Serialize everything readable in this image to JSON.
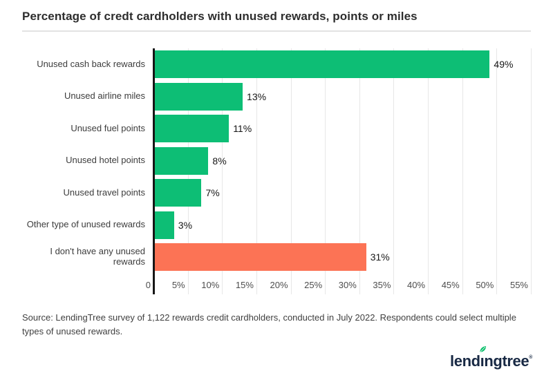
{
  "title": "Percentage of credt cardholders with unused rewards, points or miles",
  "source_note": "Source: LendingTree survey of 1,122 rewards credit cardholders, conducted in July 2022. Respondents could select multiple types of unused rewards.",
  "logo": {
    "name": "lendingtree",
    "prefix": "lend",
    "dotless_i": "ı",
    "suffix": "ngtree",
    "registered_mark": "®"
  },
  "colors": {
    "bar_green": "#0dbe75",
    "bar_orange": "#fc7355",
    "axis": "#161616",
    "gridline": "#e7e7e7",
    "divider": "#e2e2e2",
    "title_text": "#2d2d2d",
    "category_text": "#3c3c3c",
    "tick_text": "#4d4d4d",
    "logo_navy": "#182944",
    "leaf_green": "#0cc06c"
  },
  "chart_data": {
    "type": "bar",
    "orientation": "horizontal",
    "title": "Percentage of credt cardholders with unused rewards, points or miles",
    "categories": [
      "Unused cash back rewards",
      "Unused airline miles",
      "Unused fuel points",
      "Unused hotel points",
      "Unused travel points",
      "Other type of unused rewards",
      "I don't have any unused rewards"
    ],
    "values": [
      49,
      13,
      11,
      8,
      7,
      3,
      31
    ],
    "value_labels": [
      "49%",
      "13%",
      "11%",
      "8%",
      "7%",
      "3%",
      "31%"
    ],
    "bar_colors": [
      "#0dbe75",
      "#0dbe75",
      "#0dbe75",
      "#0dbe75",
      "#0dbe75",
      "#0dbe75",
      "#fc7355"
    ],
    "highlight_category": "I don't have any unused rewards",
    "x_ticks": [
      "0",
      "5%",
      "10%",
      "15%",
      "20%",
      "25%",
      "30%",
      "35%",
      "40%",
      "45%",
      "50%",
      "55%"
    ],
    "tick_values": [
      0,
      5,
      10,
      15,
      20,
      25,
      30,
      35,
      40,
      45,
      50,
      55
    ],
    "xlim": [
      0,
      55
    ],
    "xlabel": "",
    "ylabel": "",
    "grid": "vertical",
    "legend": "none"
  }
}
